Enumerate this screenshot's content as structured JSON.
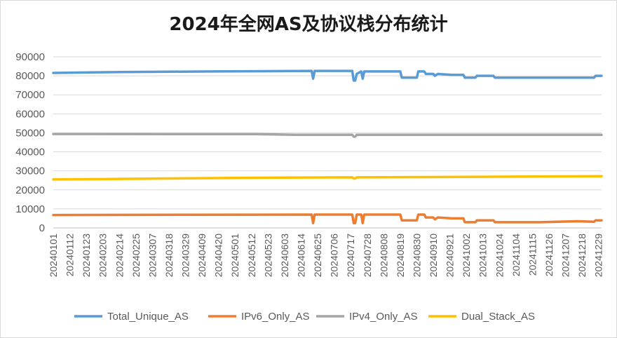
{
  "chart_data": {
    "type": "line",
    "title": "2024年全网AS及协议栈分布统计",
    "xlabel": "",
    "ylabel": "",
    "ylim": [
      0,
      90000
    ],
    "yticks": [
      0,
      10000,
      20000,
      30000,
      40000,
      50000,
      60000,
      70000,
      80000,
      90000
    ],
    "grid": true,
    "legend": "bottom",
    "x_tick_labels": [
      "20240101",
      "20240112",
      "20240123",
      "20240203",
      "20240214",
      "20240225",
      "20240307",
      "20240318",
      "20240329",
      "20240409",
      "20240420",
      "20240501",
      "20240512",
      "20240523",
      "20240603",
      "20240614",
      "20240625",
      "20240706",
      "20240717",
      "20240728",
      "20240808",
      "20240819",
      "20240830",
      "20240910",
      "20240921",
      "20241002",
      "20241013",
      "20241024",
      "20241104",
      "20241115",
      "20241126",
      "20241207",
      "20241218",
      "20241229"
    ],
    "x_start": "2024-01-01",
    "x_end": "2024-12-31",
    "series": [
      {
        "name": "Total_Unique_AS",
        "color": "#5b9bd5",
        "points": [
          [
            "2024-01-01",
            81500
          ],
          [
            "2024-02-15",
            82000
          ],
          [
            "2024-04-15",
            82300
          ],
          [
            "2024-06-21",
            82600
          ],
          [
            "2024-06-22",
            78500
          ],
          [
            "2024-06-23",
            82600
          ],
          [
            "2024-07-18",
            82600
          ],
          [
            "2024-07-19",
            77500
          ],
          [
            "2024-07-20",
            77500
          ],
          [
            "2024-07-21",
            81000
          ],
          [
            "2024-07-24",
            82300
          ],
          [
            "2024-07-25",
            78500
          ],
          [
            "2024-07-26",
            82300
          ],
          [
            "2024-08-19",
            82300
          ],
          [
            "2024-08-20",
            79000
          ],
          [
            "2024-08-30",
            79000
          ],
          [
            "2024-08-31",
            82300
          ],
          [
            "2024-09-04",
            82300
          ],
          [
            "2024-09-05",
            81000
          ],
          [
            "2024-09-10",
            81000
          ],
          [
            "2024-09-11",
            80000
          ],
          [
            "2024-09-13",
            81000
          ],
          [
            "2024-09-22",
            80500
          ],
          [
            "2024-09-30",
            80500
          ],
          [
            "2024-10-01",
            79000
          ],
          [
            "2024-10-08",
            79000
          ],
          [
            "2024-10-09",
            80000
          ],
          [
            "2024-10-20",
            80000
          ],
          [
            "2024-10-21",
            79000
          ],
          [
            "2024-12-20",
            79000
          ],
          [
            "2024-12-26",
            79000
          ],
          [
            "2024-12-27",
            80000
          ],
          [
            "2024-12-31",
            80000
          ]
        ]
      },
      {
        "name": "IPv6_Only_AS",
        "color": "#ed7d31",
        "points": [
          [
            "2024-01-01",
            6800
          ],
          [
            "2024-06-21",
            7000
          ],
          [
            "2024-06-22",
            2500
          ],
          [
            "2024-06-23",
            7000
          ],
          [
            "2024-07-18",
            7000
          ],
          [
            "2024-07-19",
            2500
          ],
          [
            "2024-07-20",
            2500
          ],
          [
            "2024-07-21",
            7000
          ],
          [
            "2024-07-24",
            7000
          ],
          [
            "2024-07-25",
            2500
          ],
          [
            "2024-07-26",
            7000
          ],
          [
            "2024-08-19",
            7000
          ],
          [
            "2024-08-20",
            4000
          ],
          [
            "2024-08-30",
            4000
          ],
          [
            "2024-08-31",
            7000
          ],
          [
            "2024-09-04",
            7000
          ],
          [
            "2024-09-05",
            5500
          ],
          [
            "2024-09-10",
            5500
          ],
          [
            "2024-09-11",
            4500
          ],
          [
            "2024-09-13",
            5500
          ],
          [
            "2024-09-22",
            5000
          ],
          [
            "2024-09-30",
            5000
          ],
          [
            "2024-10-01",
            3000
          ],
          [
            "2024-10-08",
            3000
          ],
          [
            "2024-10-09",
            4000
          ],
          [
            "2024-10-20",
            4000
          ],
          [
            "2024-10-21",
            3000
          ],
          [
            "2024-11-20",
            3000
          ],
          [
            "2024-12-15",
            3500
          ],
          [
            "2024-12-26",
            3200
          ],
          [
            "2024-12-27",
            4000
          ],
          [
            "2024-12-31",
            4000
          ]
        ]
      },
      {
        "name": "IPv4_Only_AS",
        "color": "#a5a5a5",
        "points": [
          [
            "2024-01-01",
            49400
          ],
          [
            "2024-05-15",
            49300
          ],
          [
            "2024-06-10",
            49000
          ],
          [
            "2024-07-18",
            49000
          ],
          [
            "2024-07-19",
            48000
          ],
          [
            "2024-07-20",
            48000
          ],
          [
            "2024-07-21",
            49000
          ],
          [
            "2024-12-31",
            49000
          ]
        ]
      },
      {
        "name": "Dual_Stack_AS",
        "color": "#ffc000",
        "points": [
          [
            "2024-01-01",
            25500
          ],
          [
            "2024-06-01",
            26500
          ],
          [
            "2024-07-18",
            26600
          ],
          [
            "2024-07-19",
            26000
          ],
          [
            "2024-07-20",
            26000
          ],
          [
            "2024-07-21",
            26600
          ],
          [
            "2024-12-31",
            27200
          ]
        ]
      }
    ]
  }
}
